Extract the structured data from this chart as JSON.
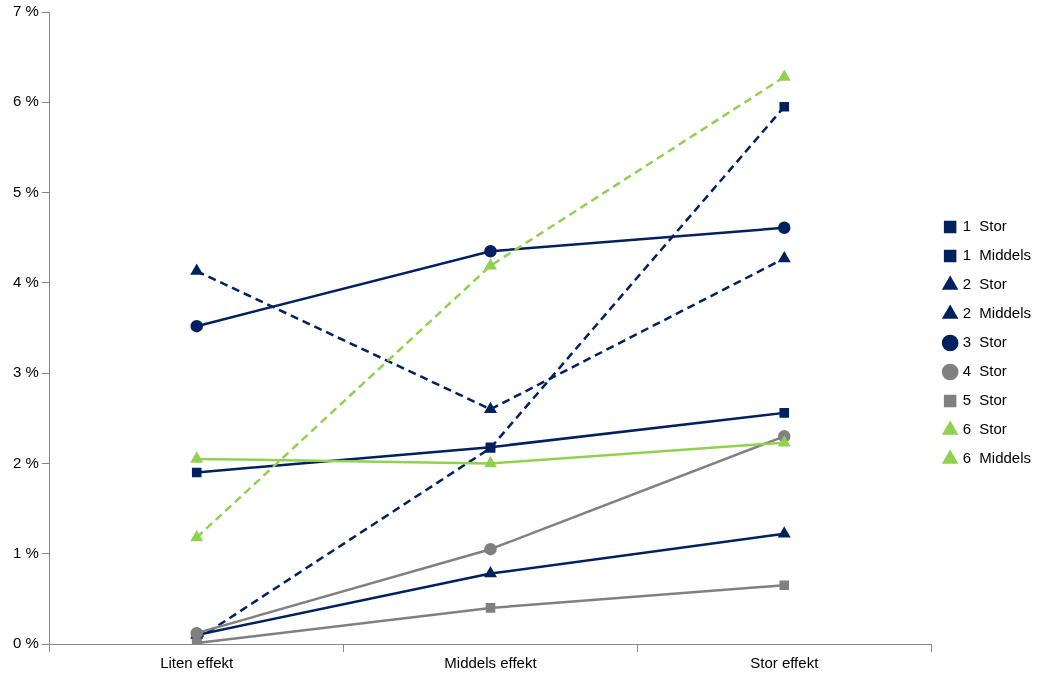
{
  "chart_data": {
    "type": "line",
    "categories": [
      "Liten effekt",
      "Middels effekt",
      "Stor effekt"
    ],
    "ylim": [
      0,
      7
    ],
    "yticks": [
      {
        "value": 0,
        "label": "0 %"
      },
      {
        "value": 1,
        "label": "1 %"
      },
      {
        "value": 2,
        "label": "2 %"
      },
      {
        "value": 3,
        "label": "3 %"
      },
      {
        "value": 4,
        "label": "4 %"
      },
      {
        "value": 5,
        "label": "5 %"
      },
      {
        "value": 6,
        "label": "6 %"
      },
      {
        "value": 7,
        "label": "7 %"
      }
    ],
    "grid": false,
    "legend": "right",
    "series": [
      {
        "name": "1  Stor",
        "color": "#002060",
        "values": [
          0.05,
          2.17,
          5.95
        ],
        "marker": "square",
        "line_style": "dashed"
      },
      {
        "name": "1  Middels",
        "color": "#002060",
        "values": [
          1.9,
          2.18,
          2.56
        ],
        "marker": "square",
        "line_style": "solid"
      },
      {
        "name": "2  Stor",
        "color": "#002060",
        "values": [
          4.13,
          2.6,
          4.27
        ],
        "marker": "triangle",
        "line_style": "dashed"
      },
      {
        "name": "2  Middels",
        "color": "#002060",
        "values": [
          0.1,
          0.78,
          1.22
        ],
        "marker": "triangle",
        "line_style": "solid"
      },
      {
        "name": "3  Stor",
        "color": "#002060",
        "values": [
          3.52,
          4.35,
          4.61
        ],
        "marker": "circle",
        "line_style": "solid"
      },
      {
        "name": "4  Stor",
        "color": "#808080",
        "values": [
          0.12,
          1.05,
          2.3
        ],
        "marker": "circle",
        "line_style": "solid"
      },
      {
        "name": "5  Stor",
        "color": "#808080",
        "values": [
          0.01,
          0.4,
          0.65
        ],
        "marker": "square",
        "line_style": "solid"
      },
      {
        "name": "6  Stor",
        "color": "#92d050",
        "values": [
          1.18,
          4.19,
          6.28
        ],
        "marker": "triangle",
        "line_style": "dashed"
      },
      {
        "name": "6  Middels",
        "color": "#92d050",
        "values": [
          2.05,
          2.0,
          2.23
        ],
        "marker": "triangle",
        "line_style": "solid"
      }
    ]
  }
}
